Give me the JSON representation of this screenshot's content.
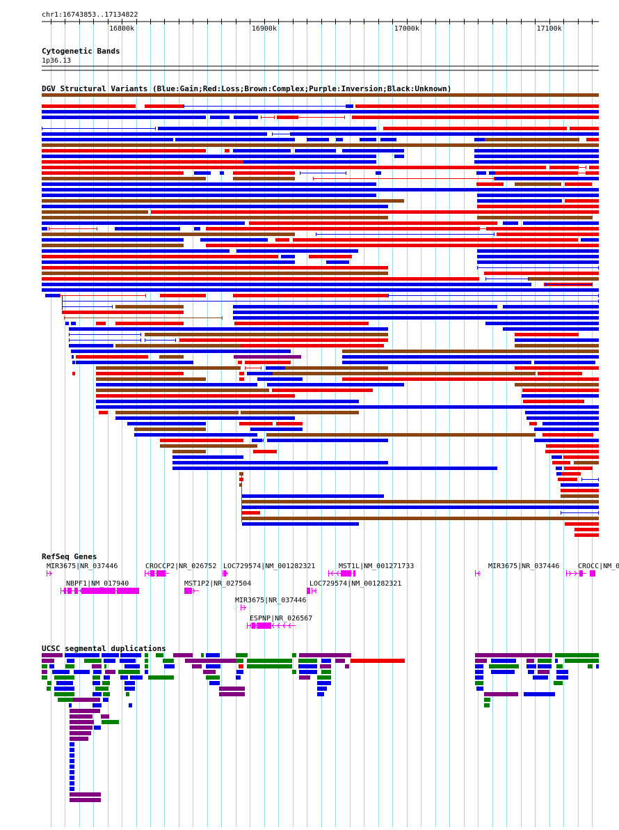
{
  "colors": {
    "gain": "#0000e6",
    "loss": "#ee0000",
    "complex": "#8b4513",
    "inversion": "#800080",
    "unknown": "#000000",
    "gene": "#ee00ee",
    "grid": "#99ddee",
    "segdup_green": "#008000",
    "segdup_purple": "#800080",
    "segdup_blue": "#0000e6",
    "segdup_red": "#ee0000"
  },
  "position": {
    "label": "chr1:16743853..17134822",
    "start": 16743853,
    "end": 17134822,
    "ticks": [
      {
        "pos": 16800000,
        "label": "16800k"
      },
      {
        "pos": 16900000,
        "label": "16900k"
      },
      {
        "pos": 17000000,
        "label": "17000k"
      },
      {
        "pos": 17100000,
        "label": "17100k"
      }
    ]
  },
  "cytoband": {
    "title": "Cytogenetic Bands",
    "band": "1p36.13"
  },
  "dgv": {
    "title": "DGV Structural Variants (Blue:Gain;Red:Loss;Brown:Complex;Purple:Inversion;Black:Unknown)"
  },
  "refseq": {
    "title": "RefSeq Genes",
    "genes": [
      {
        "name": "MIR3675|NR_037446",
        "start": 16747500,
        "end": 16748000,
        "strand": "+"
      },
      {
        "name": "NBPF1|NM_017940",
        "start": 16757000,
        "end": 16812000,
        "strand": "-"
      },
      {
        "name": "CROCCP2|NR_026752",
        "start": 16816000,
        "end": 16833000,
        "strand": "-"
      },
      {
        "name": "MST1P2|NR_027504",
        "start": 16844000,
        "end": 16854000,
        "strand": "+"
      },
      {
        "name": "LOC729574|NM_001282321",
        "start": 16871000,
        "end": 16873000,
        "strand": "+"
      },
      {
        "name": "MIR3675|NR_037446",
        "start": 16883500,
        "end": 16884000,
        "strand": "+"
      },
      {
        "name": "ESPNP|NR_026567",
        "start": 16888000,
        "end": 16922000,
        "strand": "-"
      },
      {
        "name": "LOC729574|NM_001282321",
        "start": 16933000,
        "end": 16935000,
        "strand": "-"
      },
      {
        "name": "MST1L|NM_001271733",
        "start": 16945000,
        "end": 16962000,
        "strand": "-"
      },
      {
        "name": "MIR3675|NR_037446",
        "start": 17048000,
        "end": 17049000,
        "strand": "-"
      },
      {
        "name": "CROCC|NM_0",
        "start": 17112000,
        "end": 17126000,
        "strand": "+"
      }
    ]
  },
  "segdup": {
    "title": "UCSC segmental duplications"
  }
}
